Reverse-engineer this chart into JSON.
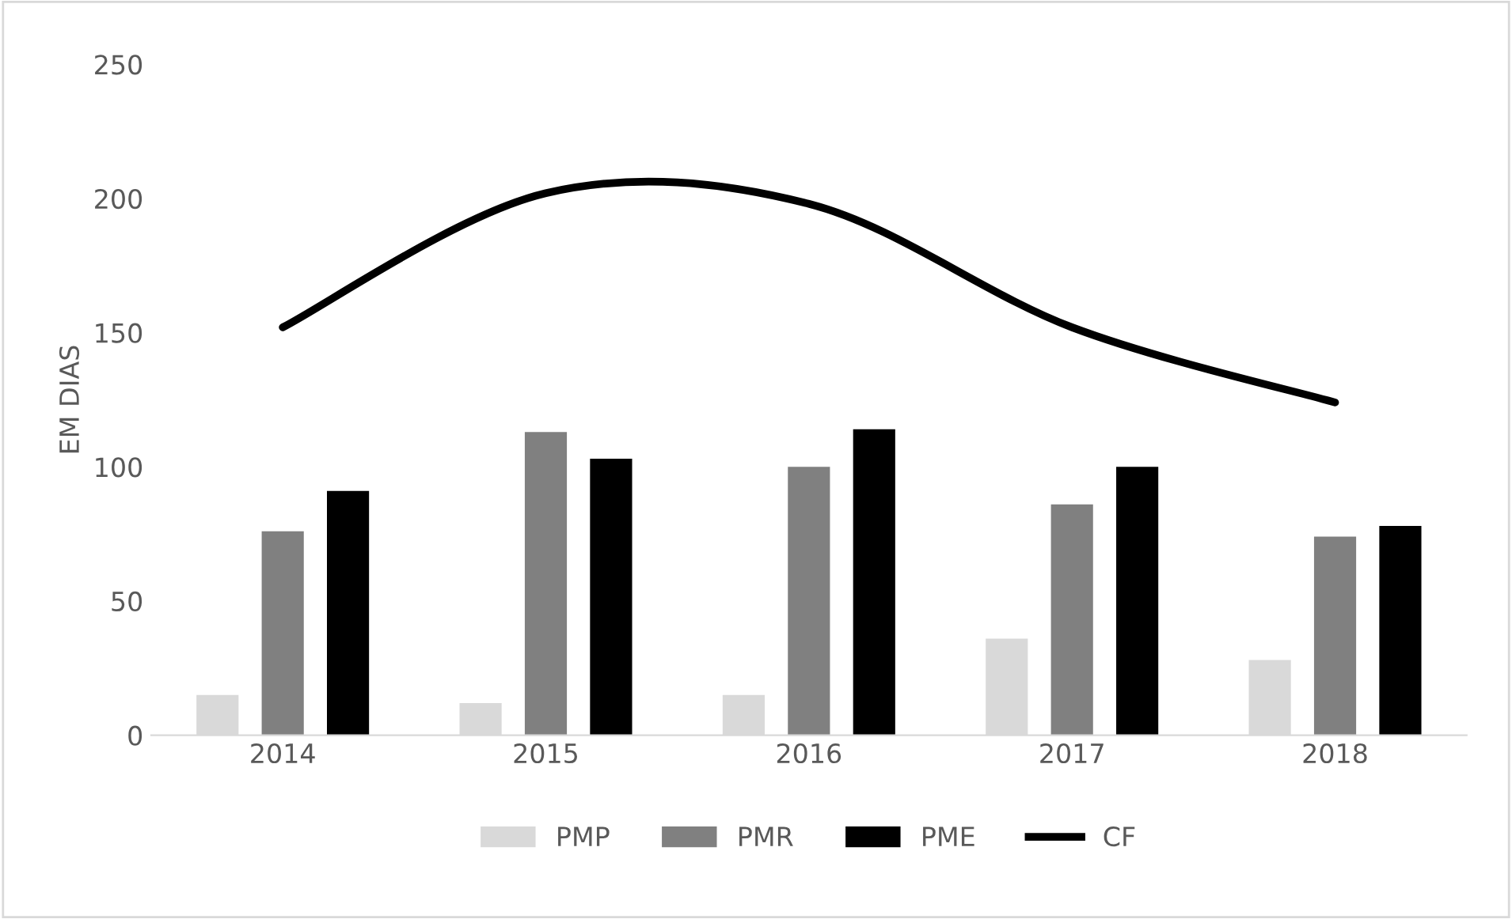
{
  "chart_data": {
    "type": "bar",
    "ylabel": "EM DIAS",
    "categories": [
      "2014",
      "2015",
      "2016",
      "2017",
      "2018"
    ],
    "series": [
      {
        "name": "PMP",
        "color": "#d9d9d9",
        "values": [
          15,
          12,
          15,
          36,
          28
        ]
      },
      {
        "name": "PMR",
        "color": "#808080",
        "values": [
          76,
          113,
          100,
          86,
          74
        ]
      },
      {
        "name": "PME",
        "color": "#000000",
        "values": [
          91,
          103,
          114,
          100,
          78
        ]
      },
      {
        "name": "CF",
        "type": "line",
        "color": "#000000",
        "values": [
          152,
          202,
          198,
          152,
          124
        ]
      }
    ],
    "ylim": [
      0,
      250
    ],
    "yticks": [
      0,
      50,
      100,
      150,
      200,
      250
    ],
    "grid": false,
    "legend": "bottom"
  }
}
